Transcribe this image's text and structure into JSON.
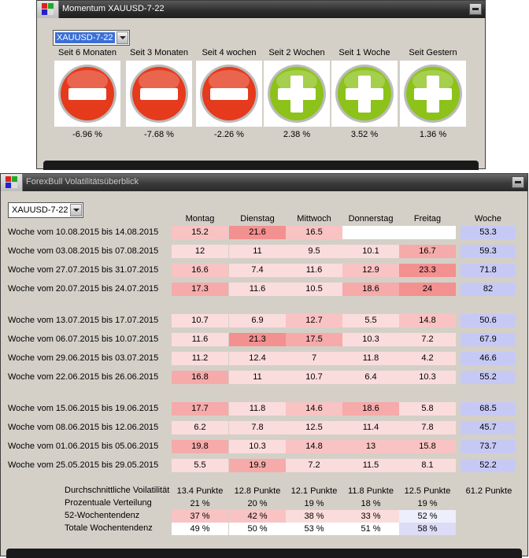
{
  "colors": {
    "minus": "#e53a1c",
    "plus": "#8cc21a",
    "week_col": "#c7c9f5",
    "scale": [
      "#ffffff",
      "#fbdcdc",
      "#f9c3c3",
      "#f6aaaa",
      "#f39090",
      "#f07474"
    ]
  },
  "momentum": {
    "title": "Momentum XAUUSD-7-22",
    "dropdown_value": "XAUUSD-7-22",
    "items": [
      {
        "label": "Seit 6 Monaten",
        "value": "-6.96 %",
        "icon": "minus-icon"
      },
      {
        "label": "Seit 3 Monaten",
        "value": "-7.68 %",
        "icon": "minus-icon"
      },
      {
        "label": "Seit 4 wochen",
        "value": "-2.26 %",
        "icon": "minus-icon"
      },
      {
        "label": "Seit 2 Wochen",
        "value": "2.38 %",
        "icon": "plus-icon"
      },
      {
        "label": "Seit 1 Woche",
        "value": "3.52 %",
        "icon": "plus-icon"
      },
      {
        "label": "Seit Gestern",
        "value": "1.36 %",
        "icon": "plus-icon"
      }
    ]
  },
  "volatility": {
    "title": "ForexBull Volatilitätsüberblick",
    "dropdown_value": "XAUUSD-7-22",
    "columns": [
      "Montag",
      "Dienstag",
      "Mittwoch",
      "Donnerstag",
      "Freitag",
      "Woche"
    ],
    "weeks": [
      {
        "label": "Woche vom 10.08.2015 bis 14.08.2015",
        "values": [
          "15.2",
          "21.6",
          "16.5",
          "",
          ""
        ],
        "week": "53.3",
        "shades": [
          2,
          4,
          2,
          0,
          0
        ]
      },
      {
        "label": "Woche vom 03.08.2015 bis 07.08.2015",
        "values": [
          "12",
          "11",
          "9.5",
          "10.1",
          "16.7"
        ],
        "week": "59.3",
        "shades": [
          1,
          1,
          1,
          1,
          3
        ]
      },
      {
        "label": "Woche vom 27.07.2015 bis 31.07.2015",
        "values": [
          "16.6",
          "7.4",
          "11.6",
          "12.9",
          "23.3"
        ],
        "week": "71.8",
        "shades": [
          2,
          1,
          1,
          2,
          4
        ]
      },
      {
        "label": "Woche vom 20.07.2015 bis 24.07.2015",
        "values": [
          "17.3",
          "11.6",
          "10.5",
          "18.6",
          "24"
        ],
        "week": "82",
        "shades": [
          3,
          1,
          1,
          3,
          4
        ]
      },
      {
        "label": "Woche vom 13.07.2015 bis 17.07.2015",
        "values": [
          "10.7",
          "6.9",
          "12.7",
          "5.5",
          "14.8"
        ],
        "week": "50.6",
        "shades": [
          1,
          1,
          2,
          1,
          2
        ]
      },
      {
        "label": "Woche vom 06.07.2015 bis 10.07.2015",
        "values": [
          "11.6",
          "21.3",
          "17.5",
          "10.3",
          "7.2"
        ],
        "week": "67.9",
        "shades": [
          1,
          4,
          3,
          1,
          1
        ]
      },
      {
        "label": "Woche vom 29.06.2015 bis 03.07.2015",
        "values": [
          "11.2",
          "12.4",
          "7",
          "11.8",
          "4.2"
        ],
        "week": "46.6",
        "shades": [
          1,
          1,
          1,
          1,
          1
        ]
      },
      {
        "label": "Woche vom 22.06.2015 bis 26.06.2015",
        "values": [
          "16.8",
          "11",
          "10.7",
          "6.4",
          "10.3"
        ],
        "week": "55.2",
        "shades": [
          3,
          1,
          1,
          1,
          1
        ]
      },
      {
        "label": "Woche vom 15.06.2015 bis 19.06.2015",
        "values": [
          "17.7",
          "11.8",
          "14.6",
          "18.6",
          "5.8"
        ],
        "week": "68.5",
        "shades": [
          3,
          1,
          2,
          3,
          1
        ]
      },
      {
        "label": "Woche vom 08.06.2015 bis 12.06.2015",
        "values": [
          "6.2",
          "7.8",
          "12.5",
          "11.4",
          "7.8"
        ],
        "week": "45.7",
        "shades": [
          1,
          1,
          1,
          1,
          1
        ]
      },
      {
        "label": "Woche vom 01.06.2015 bis 05.06.2015",
        "values": [
          "19.8",
          "10.3",
          "14.8",
          "13",
          "15.8"
        ],
        "week": "73.7",
        "shades": [
          3,
          1,
          2,
          2,
          2
        ]
      },
      {
        "label": "Woche vom 25.05.2015 bis 29.05.2015",
        "values": [
          "5.5",
          "19.9",
          "7.2",
          "11.5",
          "8.1"
        ],
        "week": "52.2",
        "shades": [
          1,
          3,
          1,
          1,
          1
        ]
      }
    ],
    "summary": {
      "avg_label": "Durchschnittliche Voilatilität",
      "avg": [
        "13.4 Punkte",
        "12.8 Punkte",
        "12.1 Punkte",
        "11.8 Punkte",
        "12.5 Punkte",
        "61.2 Punkte"
      ],
      "pct_label": "Prozentuale Verteilung",
      "pct": [
        "21 %",
        "20 %",
        "19 %",
        "18 %",
        "19 %"
      ],
      "trend52_label": "52-Wochentendenz",
      "trend52": [
        "37 %",
        "42 %",
        "38 %",
        "33 %",
        "52 %"
      ],
      "total_label": "Totale Wochentendenz",
      "total": [
        "49 %",
        "50 %",
        "53 %",
        "51 %",
        "58 %"
      ]
    }
  }
}
